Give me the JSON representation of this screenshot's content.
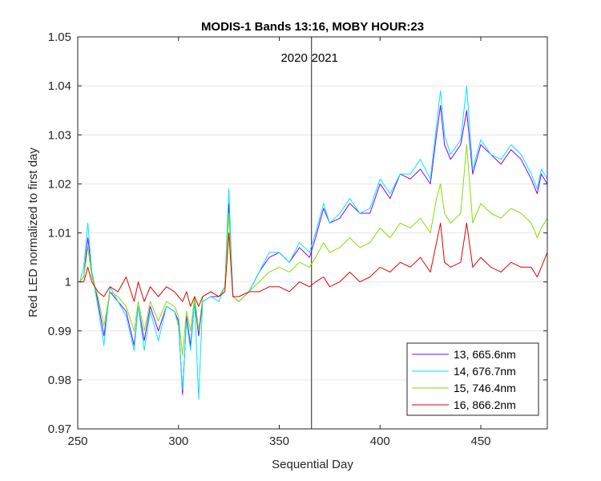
{
  "chart_data": {
    "type": "line",
    "title": "MODIS-1 Bands 13:16, MOBY HOUR:23",
    "xlabel": "Sequential Day",
    "ylabel": "Red LED normalized to first day",
    "xlim": [
      250,
      483
    ],
    "ylim": [
      0.97,
      1.05
    ],
    "xticks": [
      "250",
      "300",
      "350",
      "400",
      "450"
    ],
    "yticks": [
      "0.97",
      "0.98",
      "0.99",
      "1",
      "1.01",
      "1.02",
      "1.03",
      "1.04",
      "1.05"
    ],
    "grid": "y-only",
    "legend_position": "bottom-right",
    "annotations": [
      {
        "text": "2020",
        "x": 359
      },
      {
        "text": "2021",
        "x": 371
      }
    ],
    "vertical_line_x": 366,
    "series": [
      {
        "name": "13, 665.6nm",
        "color": "#7f00ff",
        "x": [
          251,
          253,
          255,
          257,
          260,
          263,
          266,
          270,
          274,
          278,
          280,
          283,
          286,
          290,
          294,
          298,
          300,
          302,
          304,
          306,
          308,
          310,
          312,
          316,
          320,
          323,
          325,
          327,
          330,
          335,
          340,
          345,
          350,
          355,
          360,
          365,
          368,
          372,
          375,
          380,
          385,
          390,
          395,
          400,
          405,
          410,
          415,
          420,
          425,
          428,
          430,
          432,
          435,
          440,
          443,
          446,
          450,
          455,
          460,
          465,
          470,
          475,
          478,
          480,
          483
        ],
        "y": [
          1.0,
          1.001,
          1.009,
          1.002,
          0.996,
          0.989,
          0.998,
          0.996,
          0.994,
          0.987,
          0.995,
          0.988,
          0.995,
          0.99,
          0.995,
          0.994,
          0.992,
          0.977,
          0.993,
          0.987,
          0.996,
          0.989,
          0.996,
          0.997,
          0.997,
          0.999,
          1.016,
          0.997,
          0.996,
          0.998,
          1.002,
          1.005,
          1.006,
          1.004,
          1.007,
          1.005,
          1.009,
          1.015,
          1.012,
          1.013,
          1.016,
          1.014,
          1.014,
          1.02,
          1.017,
          1.022,
          1.021,
          1.023,
          1.02,
          1.03,
          1.036,
          1.028,
          1.025,
          1.028,
          1.035,
          1.022,
          1.028,
          1.026,
          1.024,
          1.027,
          1.025,
          1.021,
          1.018,
          1.022,
          1.02
        ]
      },
      {
        "name": "14, 676.7nm",
        "color": "#00e5ff",
        "x": [
          251,
          253,
          255,
          257,
          260,
          263,
          266,
          270,
          274,
          278,
          280,
          283,
          286,
          290,
          294,
          298,
          300,
          302,
          304,
          306,
          308,
          310,
          312,
          316,
          320,
          323,
          325,
          327,
          330,
          335,
          340,
          345,
          350,
          355,
          360,
          365,
          368,
          372,
          375,
          380,
          385,
          390,
          395,
          400,
          405,
          410,
          415,
          420,
          425,
          428,
          430,
          432,
          435,
          440,
          443,
          446,
          450,
          455,
          460,
          465,
          470,
          475,
          478,
          480,
          483
        ],
        "y": [
          1.0,
          1.003,
          1.012,
          1.002,
          0.995,
          0.987,
          0.999,
          0.996,
          0.993,
          0.986,
          0.995,
          0.986,
          0.994,
          0.988,
          0.995,
          0.994,
          0.991,
          0.978,
          0.992,
          0.986,
          0.996,
          0.976,
          0.996,
          0.997,
          0.996,
          0.999,
          1.019,
          0.997,
          0.996,
          0.998,
          1.002,
          1.006,
          1.006,
          1.004,
          1.008,
          1.006,
          1.01,
          1.016,
          1.012,
          1.014,
          1.017,
          1.014,
          1.015,
          1.021,
          1.018,
          1.022,
          1.022,
          1.025,
          1.021,
          1.032,
          1.039,
          1.03,
          1.026,
          1.029,
          1.04,
          1.023,
          1.029,
          1.026,
          1.025,
          1.028,
          1.026,
          1.022,
          1.019,
          1.023,
          1.021
        ]
      },
      {
        "name": "15, 746.4nm",
        "color": "#7fe000",
        "x": [
          251,
          253,
          255,
          257,
          260,
          263,
          266,
          270,
          274,
          278,
          280,
          283,
          286,
          290,
          294,
          298,
          300,
          302,
          304,
          306,
          308,
          310,
          312,
          316,
          320,
          323,
          325,
          327,
          330,
          335,
          340,
          345,
          350,
          355,
          360,
          365,
          368,
          372,
          375,
          380,
          385,
          390,
          395,
          400,
          405,
          410,
          415,
          420,
          425,
          428,
          430,
          432,
          435,
          440,
          443,
          446,
          450,
          455,
          460,
          465,
          470,
          475,
          478,
          480,
          483
        ],
        "y": [
          1.0,
          1.001,
          1.007,
          1.001,
          0.997,
          0.991,
          0.998,
          0.997,
          0.995,
          0.99,
          0.996,
          0.99,
          0.996,
          0.992,
          0.996,
          0.995,
          0.993,
          0.985,
          0.994,
          0.99,
          0.997,
          0.99,
          0.997,
          0.998,
          0.997,
          0.999,
          1.014,
          0.997,
          0.996,
          0.998,
          1.0,
          1.002,
          1.003,
          1.002,
          1.004,
          1.003,
          1.005,
          1.008,
          1.006,
          1.007,
          1.009,
          1.007,
          1.008,
          1.011,
          1.009,
          1.012,
          1.011,
          1.013,
          1.01,
          1.017,
          1.02,
          1.014,
          1.012,
          1.014,
          1.028,
          1.012,
          1.016,
          1.014,
          1.013,
          1.015,
          1.014,
          1.012,
          1.009,
          1.011,
          1.013
        ]
      },
      {
        "name": "16, 866.2nm",
        "color": "#e00000",
        "x": [
          251,
          253,
          255,
          257,
          260,
          263,
          266,
          270,
          274,
          278,
          280,
          283,
          286,
          290,
          294,
          298,
          300,
          302,
          304,
          306,
          308,
          310,
          312,
          316,
          320,
          323,
          325,
          327,
          330,
          335,
          340,
          345,
          350,
          355,
          360,
          365,
          368,
          372,
          375,
          380,
          385,
          390,
          395,
          400,
          405,
          410,
          415,
          420,
          425,
          428,
          430,
          432,
          435,
          440,
          443,
          446,
          450,
          455,
          460,
          465,
          470,
          475,
          478,
          480,
          483
        ],
        "y": [
          1.0,
          1.0,
          1.003,
          1.0,
          0.998,
          0.997,
          0.999,
          0.998,
          1.001,
          0.996,
          1.0,
          0.996,
          0.999,
          0.997,
          0.999,
          0.998,
          0.997,
          0.996,
          0.998,
          0.995,
          0.997,
          0.995,
          0.997,
          0.998,
          0.997,
          0.998,
          1.01,
          0.997,
          0.997,
          0.998,
          0.998,
          0.999,
          0.999,
          0.998,
          1.0,
          0.999,
          1.0,
          1.001,
          0.999,
          1.0,
          1.002,
          1.0,
          1.001,
          1.003,
          1.002,
          1.004,
          1.003,
          1.005,
          1.002,
          1.008,
          1.012,
          1.004,
          1.003,
          1.004,
          1.012,
          1.003,
          1.005,
          1.003,
          1.002,
          1.004,
          1.003,
          1.003,
          1.001,
          1.003,
          1.006
        ]
      }
    ]
  }
}
